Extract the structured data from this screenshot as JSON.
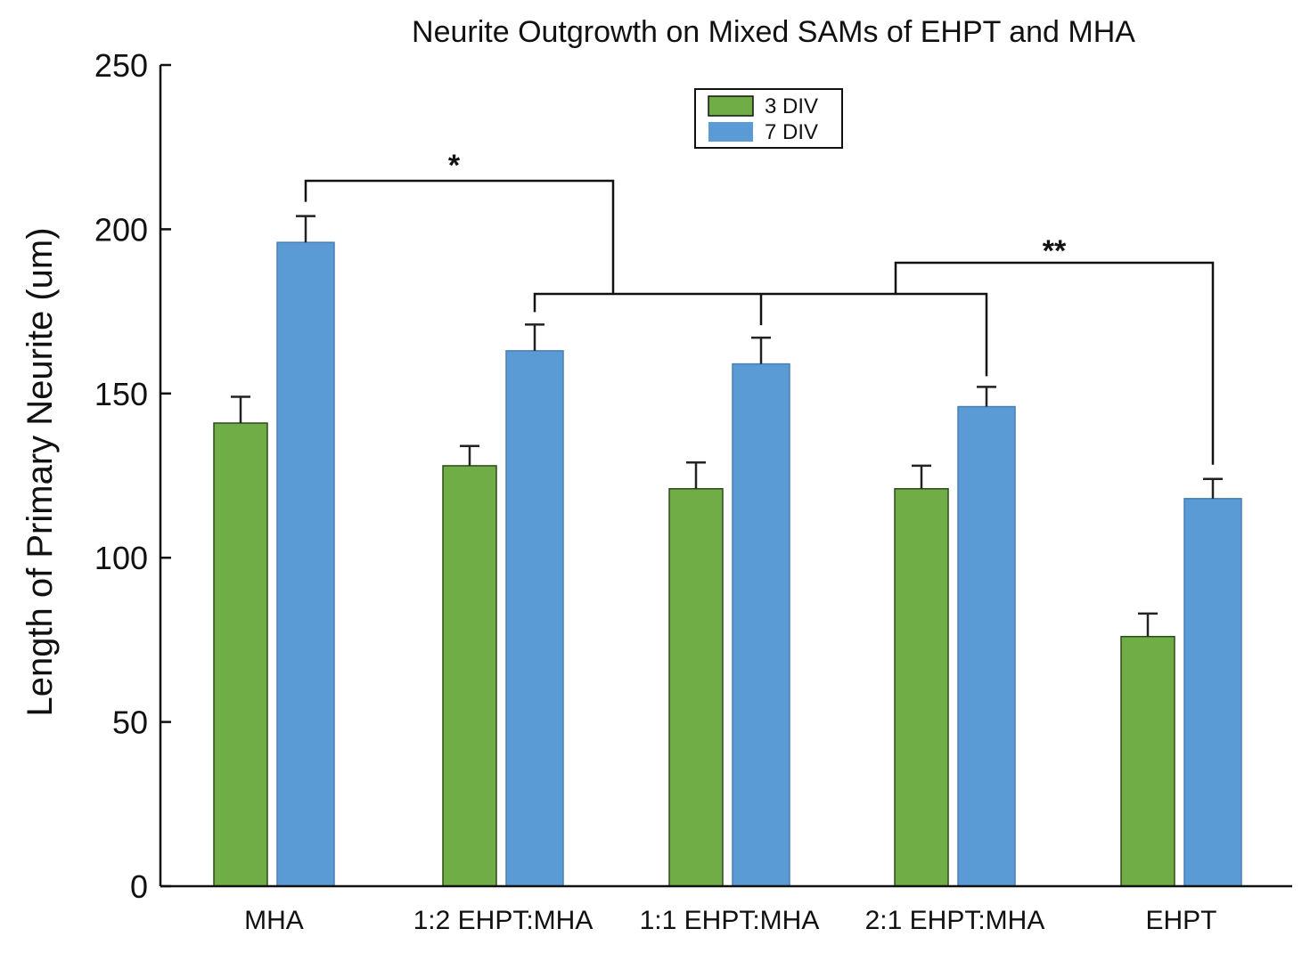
{
  "chart_data": {
    "type": "bar",
    "title": "Neurite Outgrowth on Mixed SAMs of EHPT and MHA",
    "xlabel": "",
    "ylabel": "Length of Primary Neurite (um)",
    "ylim": [
      0,
      250
    ],
    "yticks": [
      0,
      50,
      100,
      150,
      200,
      250
    ],
    "categories": [
      "MHA",
      "1:2 EHPT:MHA",
      "1:1 EHPT:MHA",
      "2:1 EHPT:MHA",
      "EHPT"
    ],
    "series": [
      {
        "name": "3 DIV",
        "color": "#70ad47",
        "values": [
          141,
          128,
          121,
          121,
          76
        ],
        "errors": [
          8,
          6,
          8,
          7,
          7
        ]
      },
      {
        "name": "7 DIV",
        "color": "#5b9bd5",
        "values": [
          196,
          163,
          159,
          146,
          118
        ],
        "errors": [
          8,
          8,
          8,
          6,
          6
        ]
      }
    ],
    "legend": {
      "position": "top-center",
      "entries": [
        "3 DIV",
        "7 DIV"
      ]
    },
    "grid": false,
    "annotations": [
      {
        "label": "*",
        "from": "MHA (7 DIV)",
        "to": "mixed SAMs (7 DIV)"
      },
      {
        "label": "**",
        "from": "2:1 EHPT:MHA (7 DIV)",
        "to": "EHPT (7 DIV)"
      }
    ]
  }
}
